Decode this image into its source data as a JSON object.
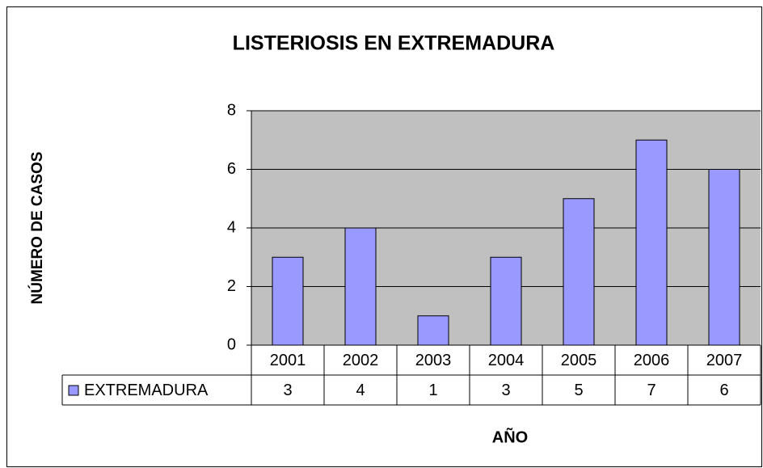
{
  "chart_data": {
    "type": "bar",
    "title": "LISTERIOSIS EN EXTREMADURA",
    "x_label": "AÑO",
    "y_label": "NÚMERO DE CASOS",
    "categories": [
      "2001",
      "2002",
      "2003",
      "2004",
      "2005",
      "2006",
      "2007"
    ],
    "series": [
      {
        "name": "EXTREMADURA",
        "color": "#9999ff",
        "values": [
          3,
          4,
          1,
          3,
          5,
          7,
          6
        ]
      }
    ],
    "ylim": [
      0,
      8
    ],
    "yticks": [
      0,
      2,
      4,
      6,
      8
    ],
    "grid": true,
    "plot_background": "#c0c0c0",
    "data_table": true
  }
}
